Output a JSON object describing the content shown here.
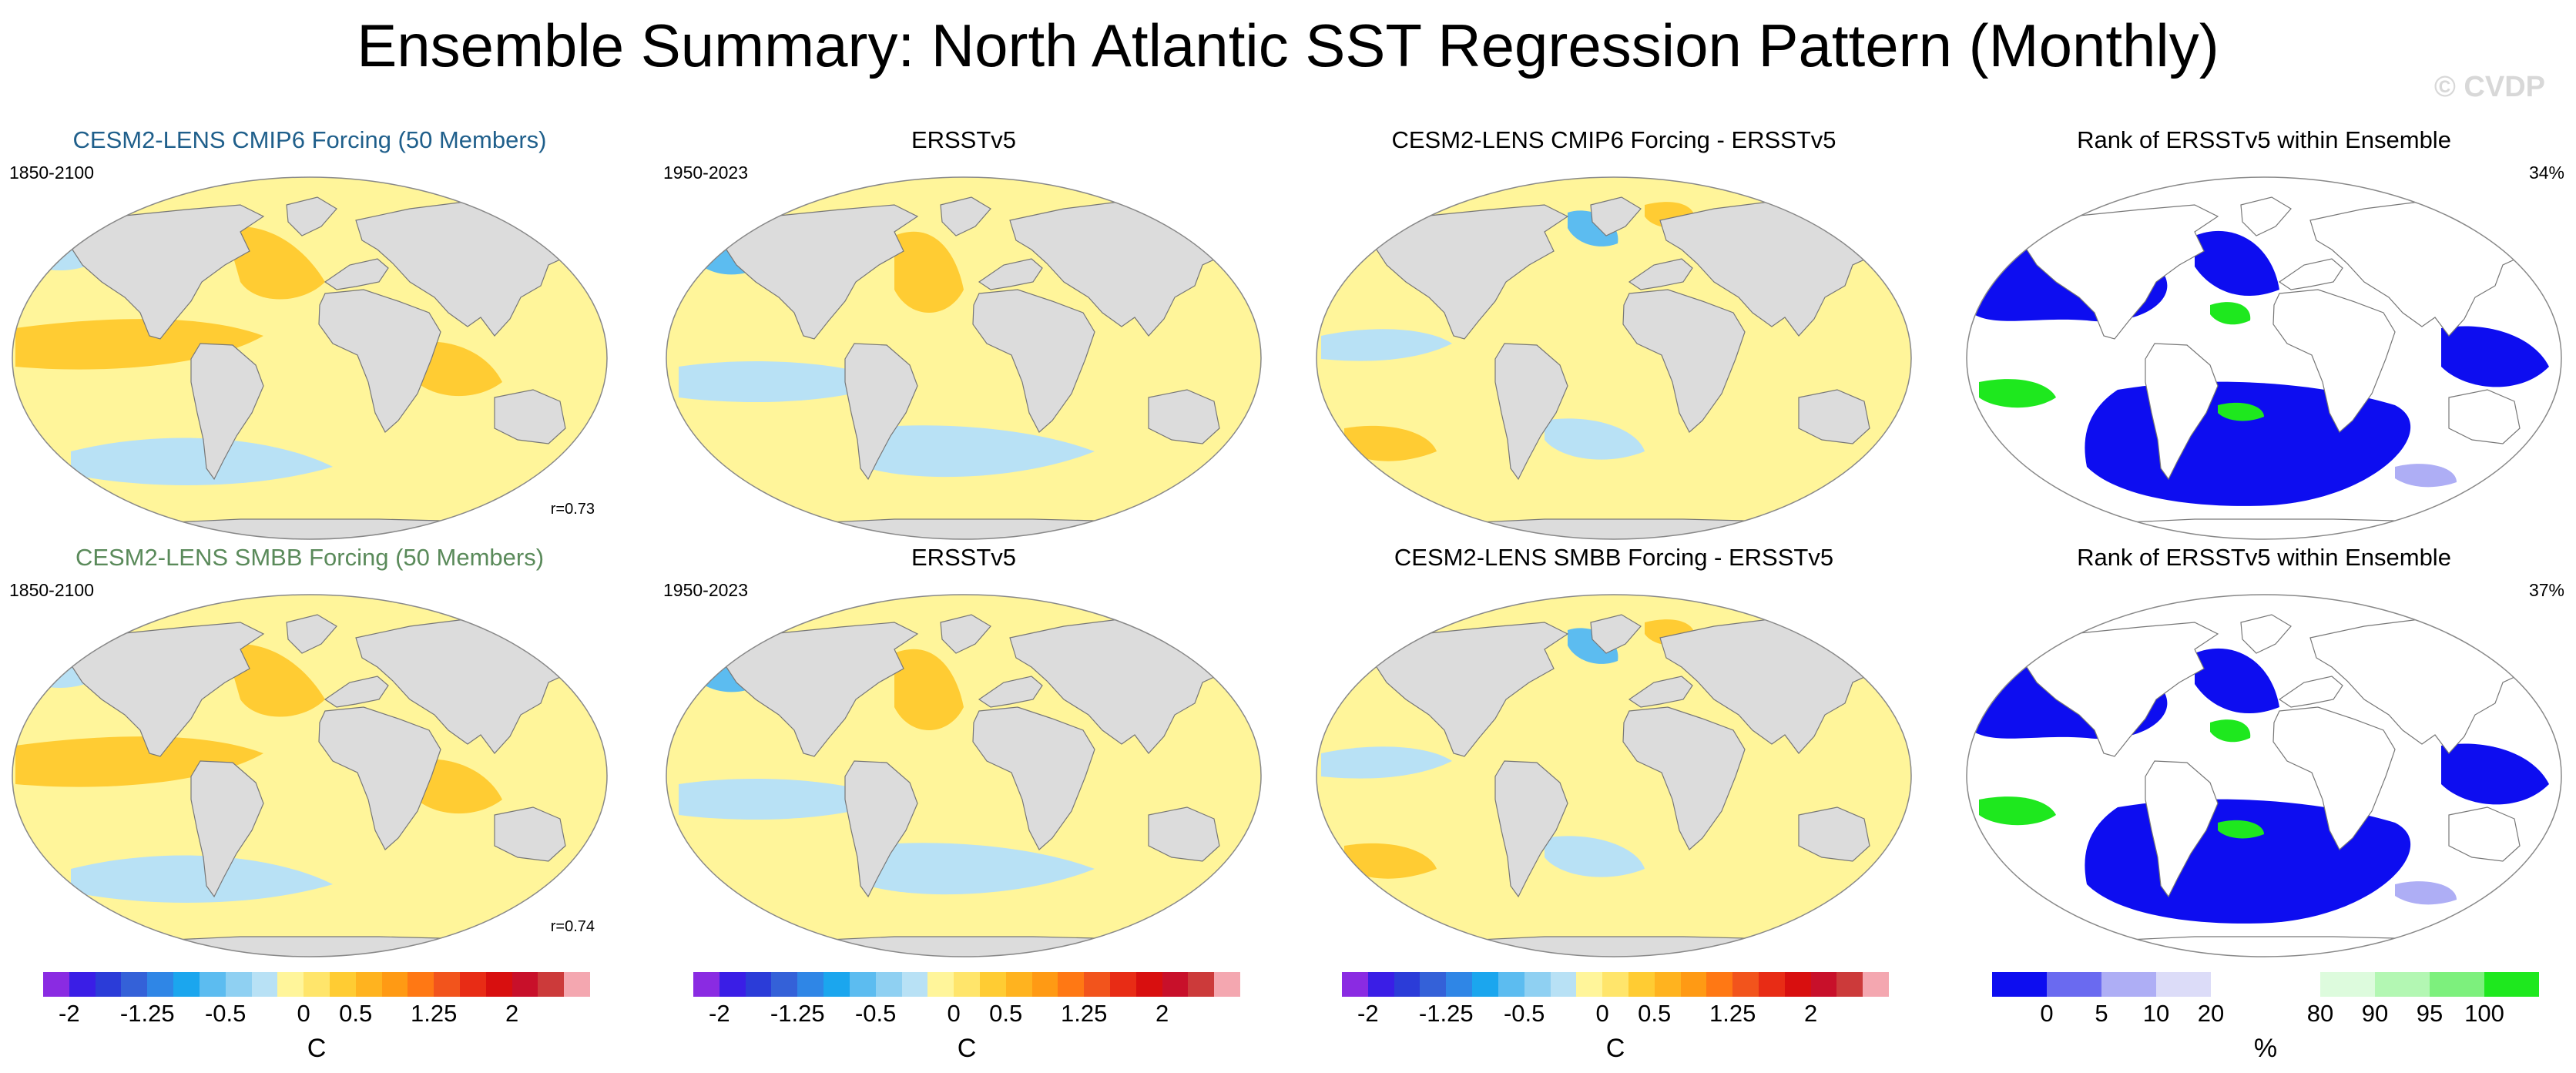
{
  "figure": {
    "title": "Ensemble Summary: North Atlantic SST Regression Pattern (Monthly)",
    "watermark": "© CVDP"
  },
  "rows": [
    {
      "ensemble": {
        "title": "CESM2-LENS CMIP6 Forcing (50 Members)",
        "title_color": "#1f5f8b",
        "years": "1850-2100",
        "r": "r=0.73"
      },
      "obs": {
        "title": "ERSSTv5",
        "years": "1950-2023"
      },
      "diff": {
        "title": "CESM2-LENS CMIP6 Forcing - ERSSTv5"
      },
      "rank": {
        "title": "Rank of ERSSTv5 within Ensemble",
        "pct": "34%"
      }
    },
    {
      "ensemble": {
        "title": "CESM2-LENS SMBB Forcing (50 Members)",
        "title_color": "#5a8a5a",
        "years": "1850-2100",
        "r": "r=0.74"
      },
      "obs": {
        "title": "ERSSTv5",
        "years": "1950-2023"
      },
      "diff": {
        "title": "CESM2-LENS SMBB Forcing - ERSSTv5"
      },
      "rank": {
        "title": "Rank of ERSSTv5 within Ensemble",
        "pct": "37%"
      }
    }
  ],
  "colorbars": {
    "sst": {
      "units": "C",
      "colors": [
        "#8a2be2",
        "#3a1ee6",
        "#2b3cd8",
        "#3461d8",
        "#2f86e6",
        "#1ba6ee",
        "#5cbcf0",
        "#8fd0f2",
        "#b8e1f5",
        "#fff59a",
        "#ffe56b",
        "#ffcc33",
        "#ffb31f",
        "#ff9a14",
        "#ff7814",
        "#f2541c",
        "#e82c15",
        "#d80f0f",
        "#c8102a",
        "#cc3a3a",
        "#f4a7b0"
      ],
      "tick_labels": [
        "-2",
        "-1.25",
        "-0.5",
        "0",
        "0.5",
        "1.25",
        "2"
      ],
      "tick_positions": [
        1,
        4,
        7,
        10,
        12,
        15,
        18
      ]
    },
    "rank": {
      "units": "%",
      "colors": [
        "#0d0df0",
        "#6a6af0",
        "#aeaef5",
        "#dcdcf8",
        "#ffffff",
        "#ffffff",
        "#ddfbdd",
        "#b3f7b3",
        "#7df07d",
        "#1ee81e"
      ],
      "tick_labels": [
        "0",
        "5",
        "10",
        "20",
        "80",
        "90",
        "95",
        "100"
      ],
      "tick_positions": [
        1,
        2,
        3,
        4,
        6,
        7,
        8,
        9
      ]
    }
  }
}
